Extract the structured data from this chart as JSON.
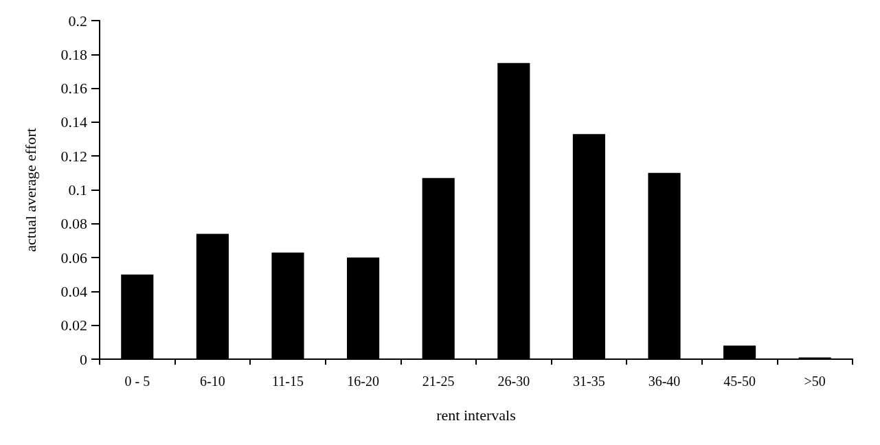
{
  "chart_data": {
    "type": "bar",
    "xlabel": "rent intervals",
    "ylabel": "actual average effort",
    "categories": [
      "0 - 5",
      "6-10",
      "11-15",
      "16-20",
      "21-25",
      "26-30",
      "31-35",
      "36-40",
      "45-50",
      ">50"
    ],
    "values": [
      0.05,
      0.074,
      0.063,
      0.06,
      0.107,
      0.175,
      0.133,
      0.11,
      0.008,
      0.001
    ],
    "color": "#000000",
    "ylim": [
      0,
      0.2
    ],
    "yticks": [
      0,
      0.02,
      0.04,
      0.06,
      0.08,
      0.1,
      0.12,
      0.14,
      0.16,
      0.18,
      0.2
    ],
    "grid": false
  }
}
